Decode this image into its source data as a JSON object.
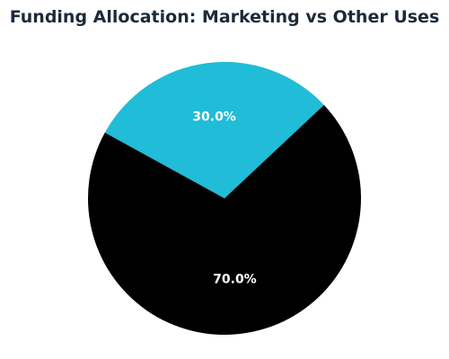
{
  "chart_data": {
    "type": "pie",
    "title": "Funding Allocation: Marketing vs Other Uses",
    "slices": [
      {
        "value": 30.0,
        "label": "30.0%",
        "color": "#20bcd8"
      },
      {
        "value": 70.0,
        "label": "70.0%",
        "color": "#000000"
      }
    ],
    "legend": "none"
  }
}
